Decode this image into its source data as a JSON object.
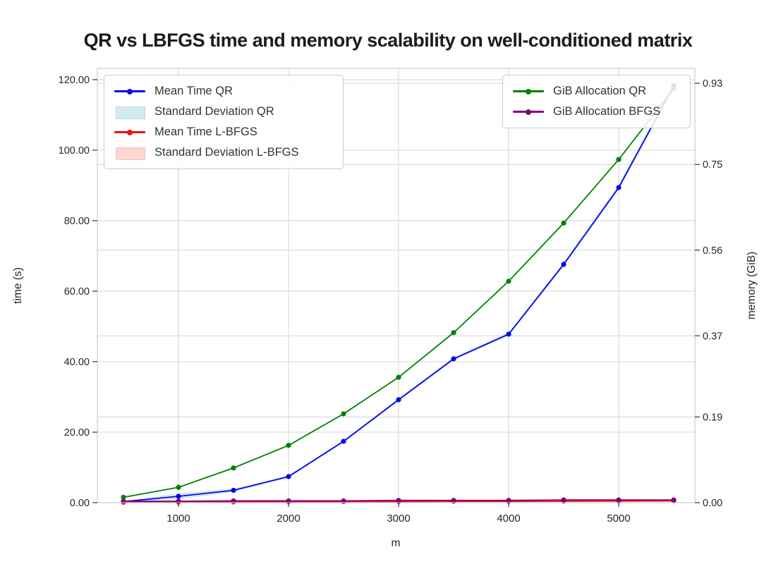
{
  "title": "QR vs LBFGS time and memory scalability on well-conditioned matrix",
  "chart_data": {
    "type": "line",
    "xlabel": "m",
    "ylabel_left": "time (s)",
    "ylabel_right": "memory (GiB)",
    "grid": true,
    "background": "#ffffff",
    "grid_color": "#d4d4d4",
    "spine_color": "#cccccc",
    "tick_text_color": "#262626",
    "xlim": [
      263,
      5692
    ],
    "ylim_left": [
      0,
      123.2
    ],
    "ylim_right": [
      0,
      0.963
    ],
    "x": [
      500,
      1000,
      1500,
      2000,
      2500,
      3000,
      3500,
      4000,
      4500,
      5000,
      5500
    ],
    "x_ticks": {
      "labels": [
        "1000",
        "2000",
        "3000",
        "4000",
        "5000"
      ],
      "values": [
        1000,
        2000,
        3000,
        4000,
        5000
      ]
    },
    "y_left_ticks": {
      "labels": [
        "0.00",
        "20.00",
        "40.00",
        "60.00",
        "80.00",
        "100.00",
        "120.00"
      ],
      "values": [
        0,
        20,
        40,
        60,
        80,
        100,
        120
      ]
    },
    "y_right_ticks": {
      "labels": [
        "0.00",
        "0.19",
        "0.37",
        "0.56",
        "0.75",
        "0.93"
      ],
      "values": [
        0,
        0.19,
        0.37,
        0.56,
        0.75,
        0.93
      ]
    },
    "series": [
      {
        "name": "Standard Deviation QR",
        "kind": "band",
        "axis": "left",
        "base": "Mean Time QR",
        "color": "rgba(173,216,230,0.55)",
        "std": [
          0.15,
          0.9,
          0.5,
          0.35,
          0.3,
          0.35,
          0.4,
          0.45,
          0.55,
          0.7,
          0.9
        ]
      },
      {
        "name": "Standard Deviation L-BFGS",
        "kind": "band",
        "axis": "left",
        "base": "Mean Time L-BFGS",
        "color": "rgba(250,140,120,0.35)",
        "std": [
          0.05,
          0.05,
          0.05,
          0.05,
          0.05,
          0.05,
          0.05,
          0.05,
          0.05,
          0.05,
          0.05
        ]
      },
      {
        "name": "Mean Time QR",
        "kind": "line",
        "axis": "left",
        "color": "#0404ee",
        "values": [
          0.3,
          1.8,
          3.5,
          7.4,
          17.4,
          29.2,
          40.8,
          47.8,
          67.6,
          89.4,
          118.2
        ]
      },
      {
        "name": "Mean Time L-BFGS",
        "kind": "line",
        "axis": "left",
        "color": "#ee1111",
        "values": [
          0.1,
          0.15,
          0.2,
          0.25,
          0.3,
          0.3,
          0.35,
          0.35,
          0.4,
          0.45,
          0.5
        ]
      },
      {
        "name": "GiB Allocation QR",
        "kind": "line",
        "axis": "right",
        "color": "#008000",
        "values": [
          0.012,
          0.034,
          0.077,
          0.127,
          0.197,
          0.278,
          0.377,
          0.491,
          0.62,
          0.761,
          0.918
        ]
      },
      {
        "name": "GiB Allocation BFGS",
        "kind": "line",
        "axis": "right",
        "color": "#800080",
        "values": [
          0.003,
          0.003,
          0.004,
          0.004,
          0.004,
          0.005,
          0.005,
          0.005,
          0.006,
          0.006,
          0.006
        ]
      }
    ],
    "legend_left": {
      "entries": [
        {
          "label": "Mean Time QR",
          "swatch": "line",
          "color": "#0404ee"
        },
        {
          "label": "Standard Deviation QR",
          "swatch": "patch",
          "color": "rgba(173,216,230,0.55)"
        },
        {
          "label": "Mean Time L-BFGS",
          "swatch": "line",
          "color": "#ee1111"
        },
        {
          "label": "Standard Deviation L-BFGS",
          "swatch": "patch",
          "color": "rgba(250,140,120,0.35)"
        }
      ]
    },
    "legend_right": {
      "entries": [
        {
          "label": "GiB Allocation QR",
          "swatch": "line",
          "color": "#008000"
        },
        {
          "label": "GiB Allocation BFGS",
          "swatch": "line",
          "color": "#800080"
        }
      ]
    }
  }
}
